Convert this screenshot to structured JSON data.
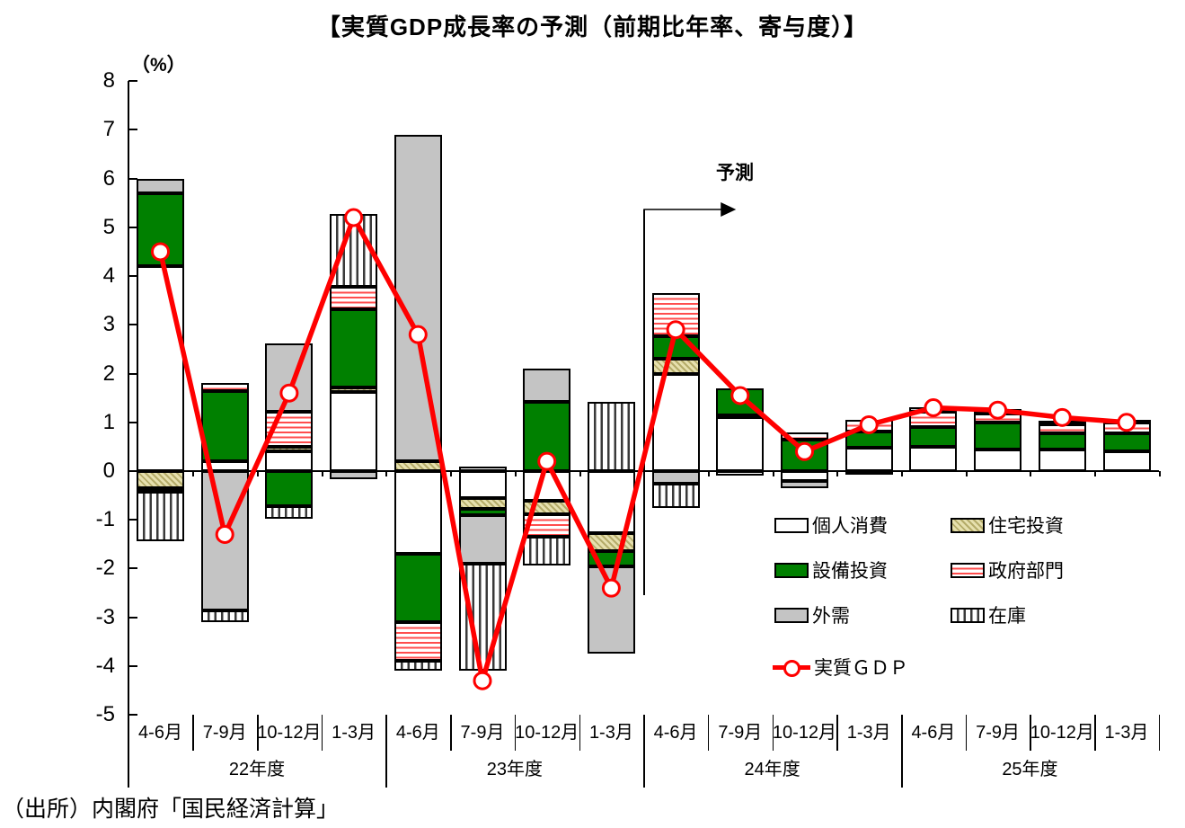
{
  "title": "【実質GDP成長率の予測（前期比年率、寄与度）】",
  "axis_unit": "（%）",
  "forecast_label": "予測",
  "source": "（出所）内閣府「国民経済計算」",
  "legend": {
    "items": [
      {
        "label": "個人消費",
        "swatch": "consumption"
      },
      {
        "label": "住宅投資",
        "swatch": "housing"
      },
      {
        "label": "設備投資",
        "swatch": "capex"
      },
      {
        "label": "政府部門",
        "swatch": "government"
      },
      {
        "label": "外需",
        "swatch": "external"
      },
      {
        "label": "在庫",
        "swatch": "inventory"
      },
      {
        "label": "実質ＧＤＰ",
        "swatch": "gdp-line"
      }
    ]
  },
  "chart_data": {
    "type": "bar",
    "subtype": "stacked-contribution-bars-with-line",
    "title": "実質GDP成長率の予測（前期比年率、寄与度）",
    "ylabel": "（%）",
    "ylim": [
      -5,
      8
    ],
    "yticks": [
      8,
      7,
      6,
      5,
      4,
      3,
      2,
      1,
      0,
      -1,
      -2,
      -3,
      -4,
      -5
    ],
    "grid": false,
    "legend_position": "inside-right",
    "categories": [
      "4-6月",
      "7-9月",
      "10-12月",
      "1-3月",
      "4-6月",
      "7-9月",
      "10-12月",
      "1-3月",
      "4-6月",
      "7-9月",
      "10-12月",
      "1-3月",
      "4-6月",
      "7-9月",
      "10-12月",
      "1-3月"
    ],
    "year_groups": [
      {
        "label": "22年度",
        "span": 4
      },
      {
        "label": "23年度",
        "span": 4
      },
      {
        "label": "24年度",
        "span": 4
      },
      {
        "label": "25年度",
        "span": 4
      }
    ],
    "forecast_starts_after_index": 8,
    "series": [
      {
        "name": "個人消費",
        "key": "consumption",
        "style": "white",
        "values": [
          4.2,
          0.2,
          0.4,
          1.63,
          -1.7,
          -0.55,
          -0.6,
          -1.28,
          2.0,
          1.1,
          -0.2,
          0.48,
          0.5,
          0.44,
          0.44,
          0.41
        ]
      },
      {
        "name": "住宅投資",
        "key": "housing",
        "style": "khaki-dot-hatch",
        "values": [
          -0.35,
          0,
          0.1,
          0.08,
          0.2,
          -0.22,
          -0.28,
          -0.37,
          0.3,
          0.05,
          0,
          0,
          0,
          0,
          0,
          0
        ]
      },
      {
        "name": "設備投資",
        "key": "capex",
        "style": "green",
        "values": [
          1.5,
          1.45,
          -0.72,
          1.6,
          -1.4,
          -0.13,
          1.42,
          -0.3,
          0.46,
          0.55,
          0.65,
          0.33,
          0.4,
          0.56,
          0.34,
          0.37
        ]
      },
      {
        "name": "政府部門",
        "key": "government",
        "style": "red-horizontal-stripes",
        "values": [
          -0.08,
          0.15,
          0.72,
          0.47,
          -0.8,
          0.1,
          -0.46,
          0,
          0.9,
          -0.1,
          0.15,
          0.25,
          0.32,
          0.18,
          0.18,
          0.22
        ]
      },
      {
        "name": "外需",
        "key": "external",
        "style": "gray",
        "values": [
          0.3,
          -2.85,
          1.4,
          -0.17,
          6.7,
          -1.0,
          0.68,
          -1.79,
          -0.25,
          0,
          -0.15,
          -0.06,
          0.09,
          0.09,
          0.07,
          0.05
        ]
      },
      {
        "name": "在庫",
        "key": "inventory",
        "style": "vertical-stripes",
        "values": [
          -1.0,
          -0.25,
          -0.25,
          1.5,
          -0.2,
          -2.2,
          -0.6,
          1.42,
          -0.5,
          0,
          0,
          0,
          0,
          0,
          0,
          0
        ]
      }
    ],
    "line_series": {
      "name": "実質ＧＤＰ",
      "color": "#ff0000",
      "marker": "open-circle",
      "values": [
        4.5,
        -1.3,
        1.6,
        5.2,
        2.8,
        -4.3,
        0.2,
        -2.4,
        2.9,
        1.55,
        0.4,
        0.95,
        1.3,
        1.25,
        1.1,
        1.0
      ]
    }
  }
}
